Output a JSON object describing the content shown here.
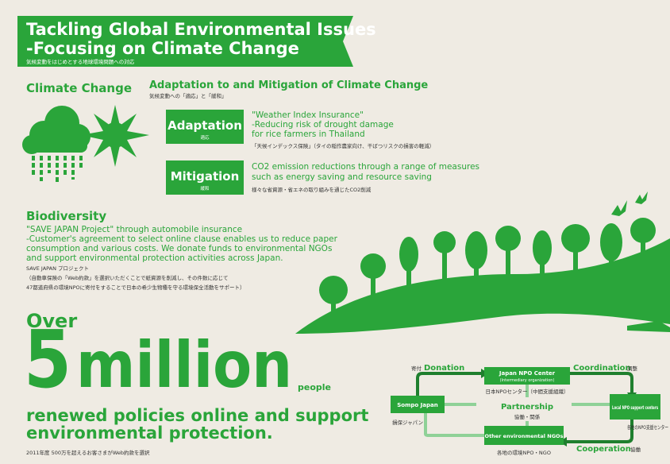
{
  "header": {
    "title": "Tackling Global Environmental Issues",
    "subtitle": "-Focusing on Climate Change",
    "jp": "気候変動をはじめとする地球環境問題への対応"
  },
  "climate": {
    "heading": "Climate Change",
    "section_title": "Adaptation to and Mitigation of Climate Change",
    "section_jp": "気候変動への「適応」と「緩和」",
    "items": [
      {
        "label": "Adaptation",
        "label_jp": "適応",
        "lines": [
          "\"Weather Index Insurance\"",
          "-Reducing risk of drought damage",
          "for rice farmers in Thailand"
        ],
        "jp": "「天候インデックス保険」（タイの稲作農家向け、干ばつリスクの損害の軽減）"
      },
      {
        "label": "Mitigation",
        "label_jp": "緩和",
        "lines": [
          "CO2 emission reductions through a range of measures",
          "such as energy saving and resource saving"
        ],
        "jp": "様々な省資源・省エネの取り組みを通じたCO2削減"
      }
    ]
  },
  "biodiversity": {
    "heading": "Biodiversity",
    "lines": [
      "\"SAVE JAPAN Project\" through automobile insurance",
      "-Customer's agreement to select online clause enables us to reduce paper",
      "consumption and various costs. We donate funds to environmental NGOs",
      "and support environmental protection activities across Japan."
    ],
    "jp_title": "SAVE JAPAN プロジェクト",
    "jp_lines": [
      "（自動車保険の「Web約款」を選択いただくことで紙資源を削減し、その件数に応じて",
      "47都道府県の環境NPOに寄付をすることで日本の希少生物種を守る環境保全活動をサポート）"
    ]
  },
  "stat": {
    "over": "Over",
    "number": "5",
    "unit": "million",
    "suffix": "people",
    "lines": [
      "renewed policies online and support",
      "environmental protection."
    ],
    "jp": "2011年度 500万を超えるお客さまがWeb約款を選択"
  },
  "diagram": {
    "center": "Partnership",
    "center_jp": "協働・関係",
    "nodes": [
      {
        "label": "Japan NPO Center",
        "sub": "(Intermediary organization)",
        "jp": "日本NPOセンター（中間支援組織）"
      },
      {
        "label": "Sompo Japan",
        "jp": "損保ジャパン"
      },
      {
        "label": "Local NPO support centers",
        "jp": "各地のNPO支援センター"
      },
      {
        "label": "Other environmental NGOs",
        "jp": "各地の環境NPO・NGO"
      }
    ],
    "edges": [
      {
        "label": "Donation",
        "jp": "寄付"
      },
      {
        "label": "Coordination",
        "jp": "調整"
      },
      {
        "label": "Cooperation",
        "jp": "協働"
      }
    ]
  }
}
